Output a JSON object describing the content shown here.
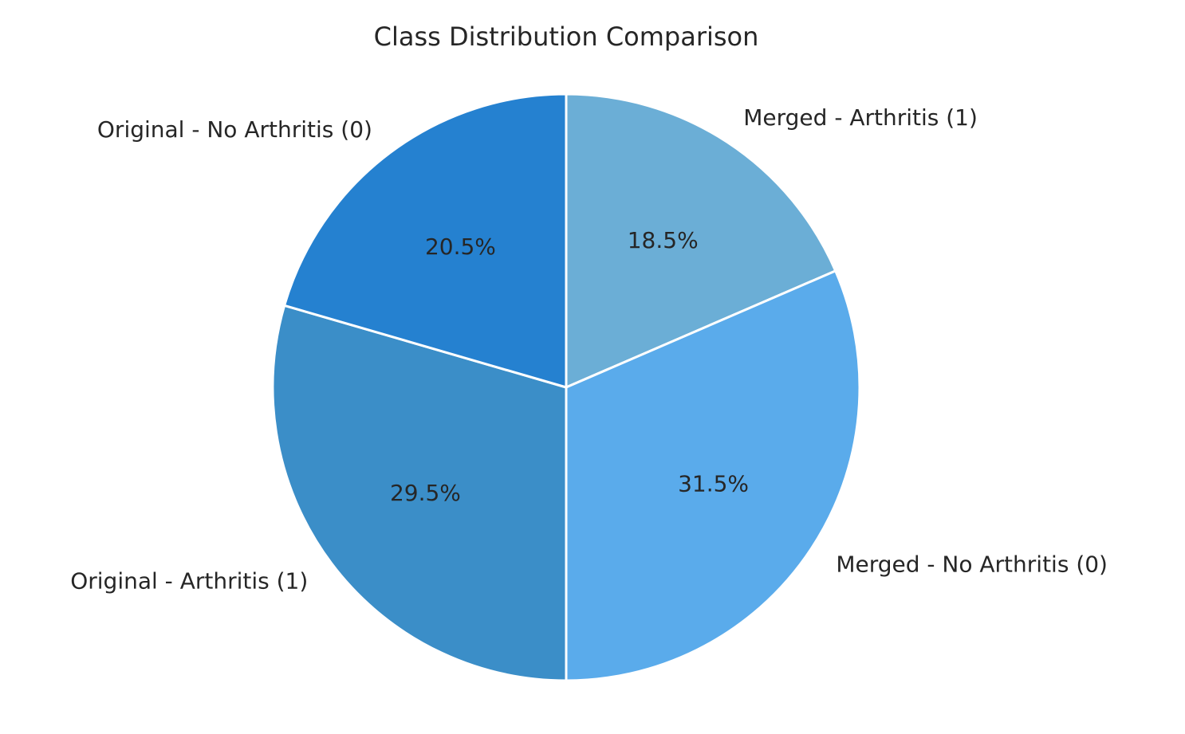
{
  "chart_data": {
    "type": "pie",
    "title": "Class Distribution Comparison",
    "start_angle_deg": 90,
    "direction": "clockwise",
    "slices": [
      {
        "label": "Merged - Arthritis (1)",
        "value": 18.5,
        "pct_label": "18.5%",
        "color": "#6baed6"
      },
      {
        "label": "Merged - No Arthritis (0)",
        "value": 31.5,
        "pct_label": "31.5%",
        "color": "#5aabeb"
      },
      {
        "label": "Original - Arthritis (1)",
        "value": 29.5,
        "pct_label": "29.5%",
        "color": "#3b8ec8"
      },
      {
        "label": "Original - No Arthritis (0)",
        "value": 20.5,
        "pct_label": "20.5%",
        "color": "#2581d0"
      }
    ]
  }
}
